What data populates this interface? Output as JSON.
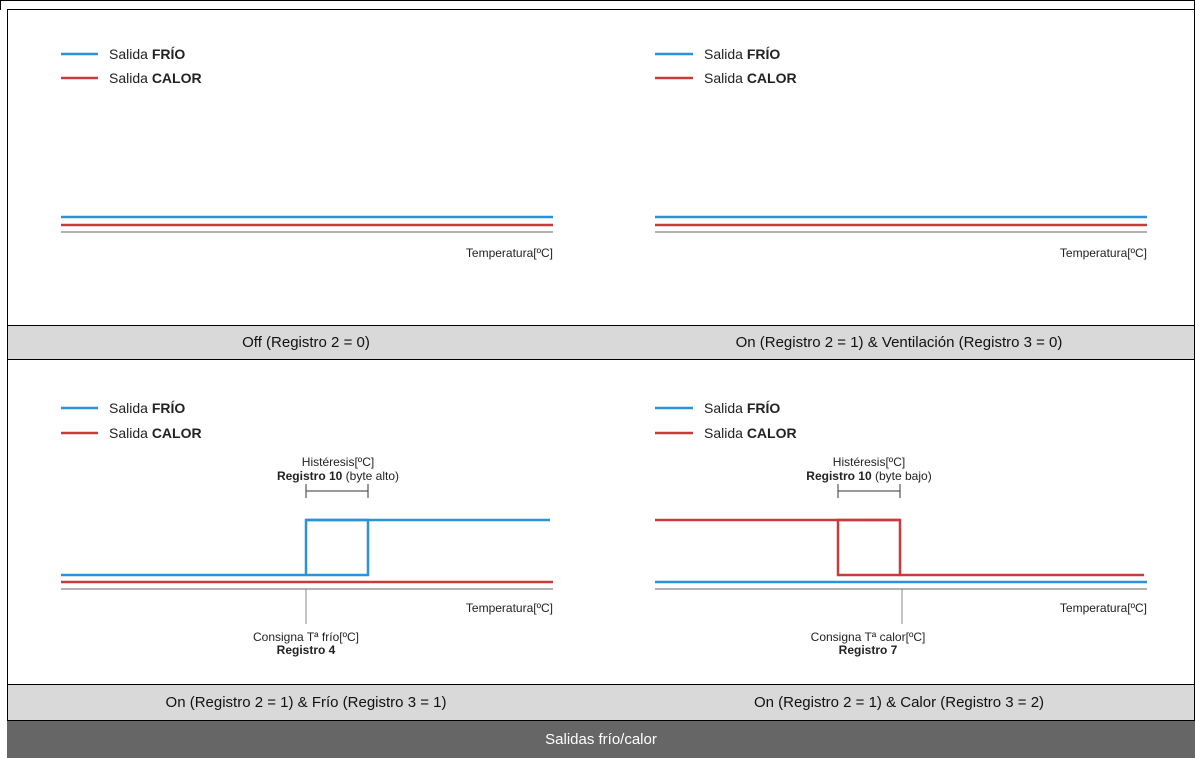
{
  "legend": {
    "cold_prefix": "Salida",
    "cold_bold": "FRÍO",
    "heat_prefix": "Salida",
    "heat_bold": "CALOR"
  },
  "colors": {
    "cold": "#2a93d5",
    "heat": "#c93a3a",
    "axis": "#666666",
    "caption_bg": "#d9d9d9",
    "footer_bg": "#666666"
  },
  "axis_label": "Temperatura[ºC]",
  "panels": [
    {
      "caption": "Off (Registro 2 = 0)",
      "mode": "off"
    },
    {
      "caption": "On (Registro 2 = 1) & Ventilación (Registro 3 = 0)",
      "mode": "fan"
    },
    {
      "caption": "On (Registro 2 = 1) & Frío (Registro 3 = 1)",
      "mode": "cold",
      "hysteresis_label": "Histéresis[ºC]",
      "hysteresis_reg": "Registro 10",
      "hysteresis_note": "(byte alto)",
      "setpoint_label": "Consigna Tª frío[ºC]",
      "setpoint_reg": "Registro 4"
    },
    {
      "caption": "On (Registro 2 = 1) & Calor (Registro 3 = 2)",
      "mode": "heat",
      "hysteresis_label": "Histéresis[ºC]",
      "hysteresis_reg": "Registro 10",
      "hysteresis_note": "(byte bajo)",
      "setpoint_label": "Consigna Tª calor[ºC]",
      "setpoint_reg": "Registro 7"
    }
  ],
  "footer": "Salidas frío/calor"
}
